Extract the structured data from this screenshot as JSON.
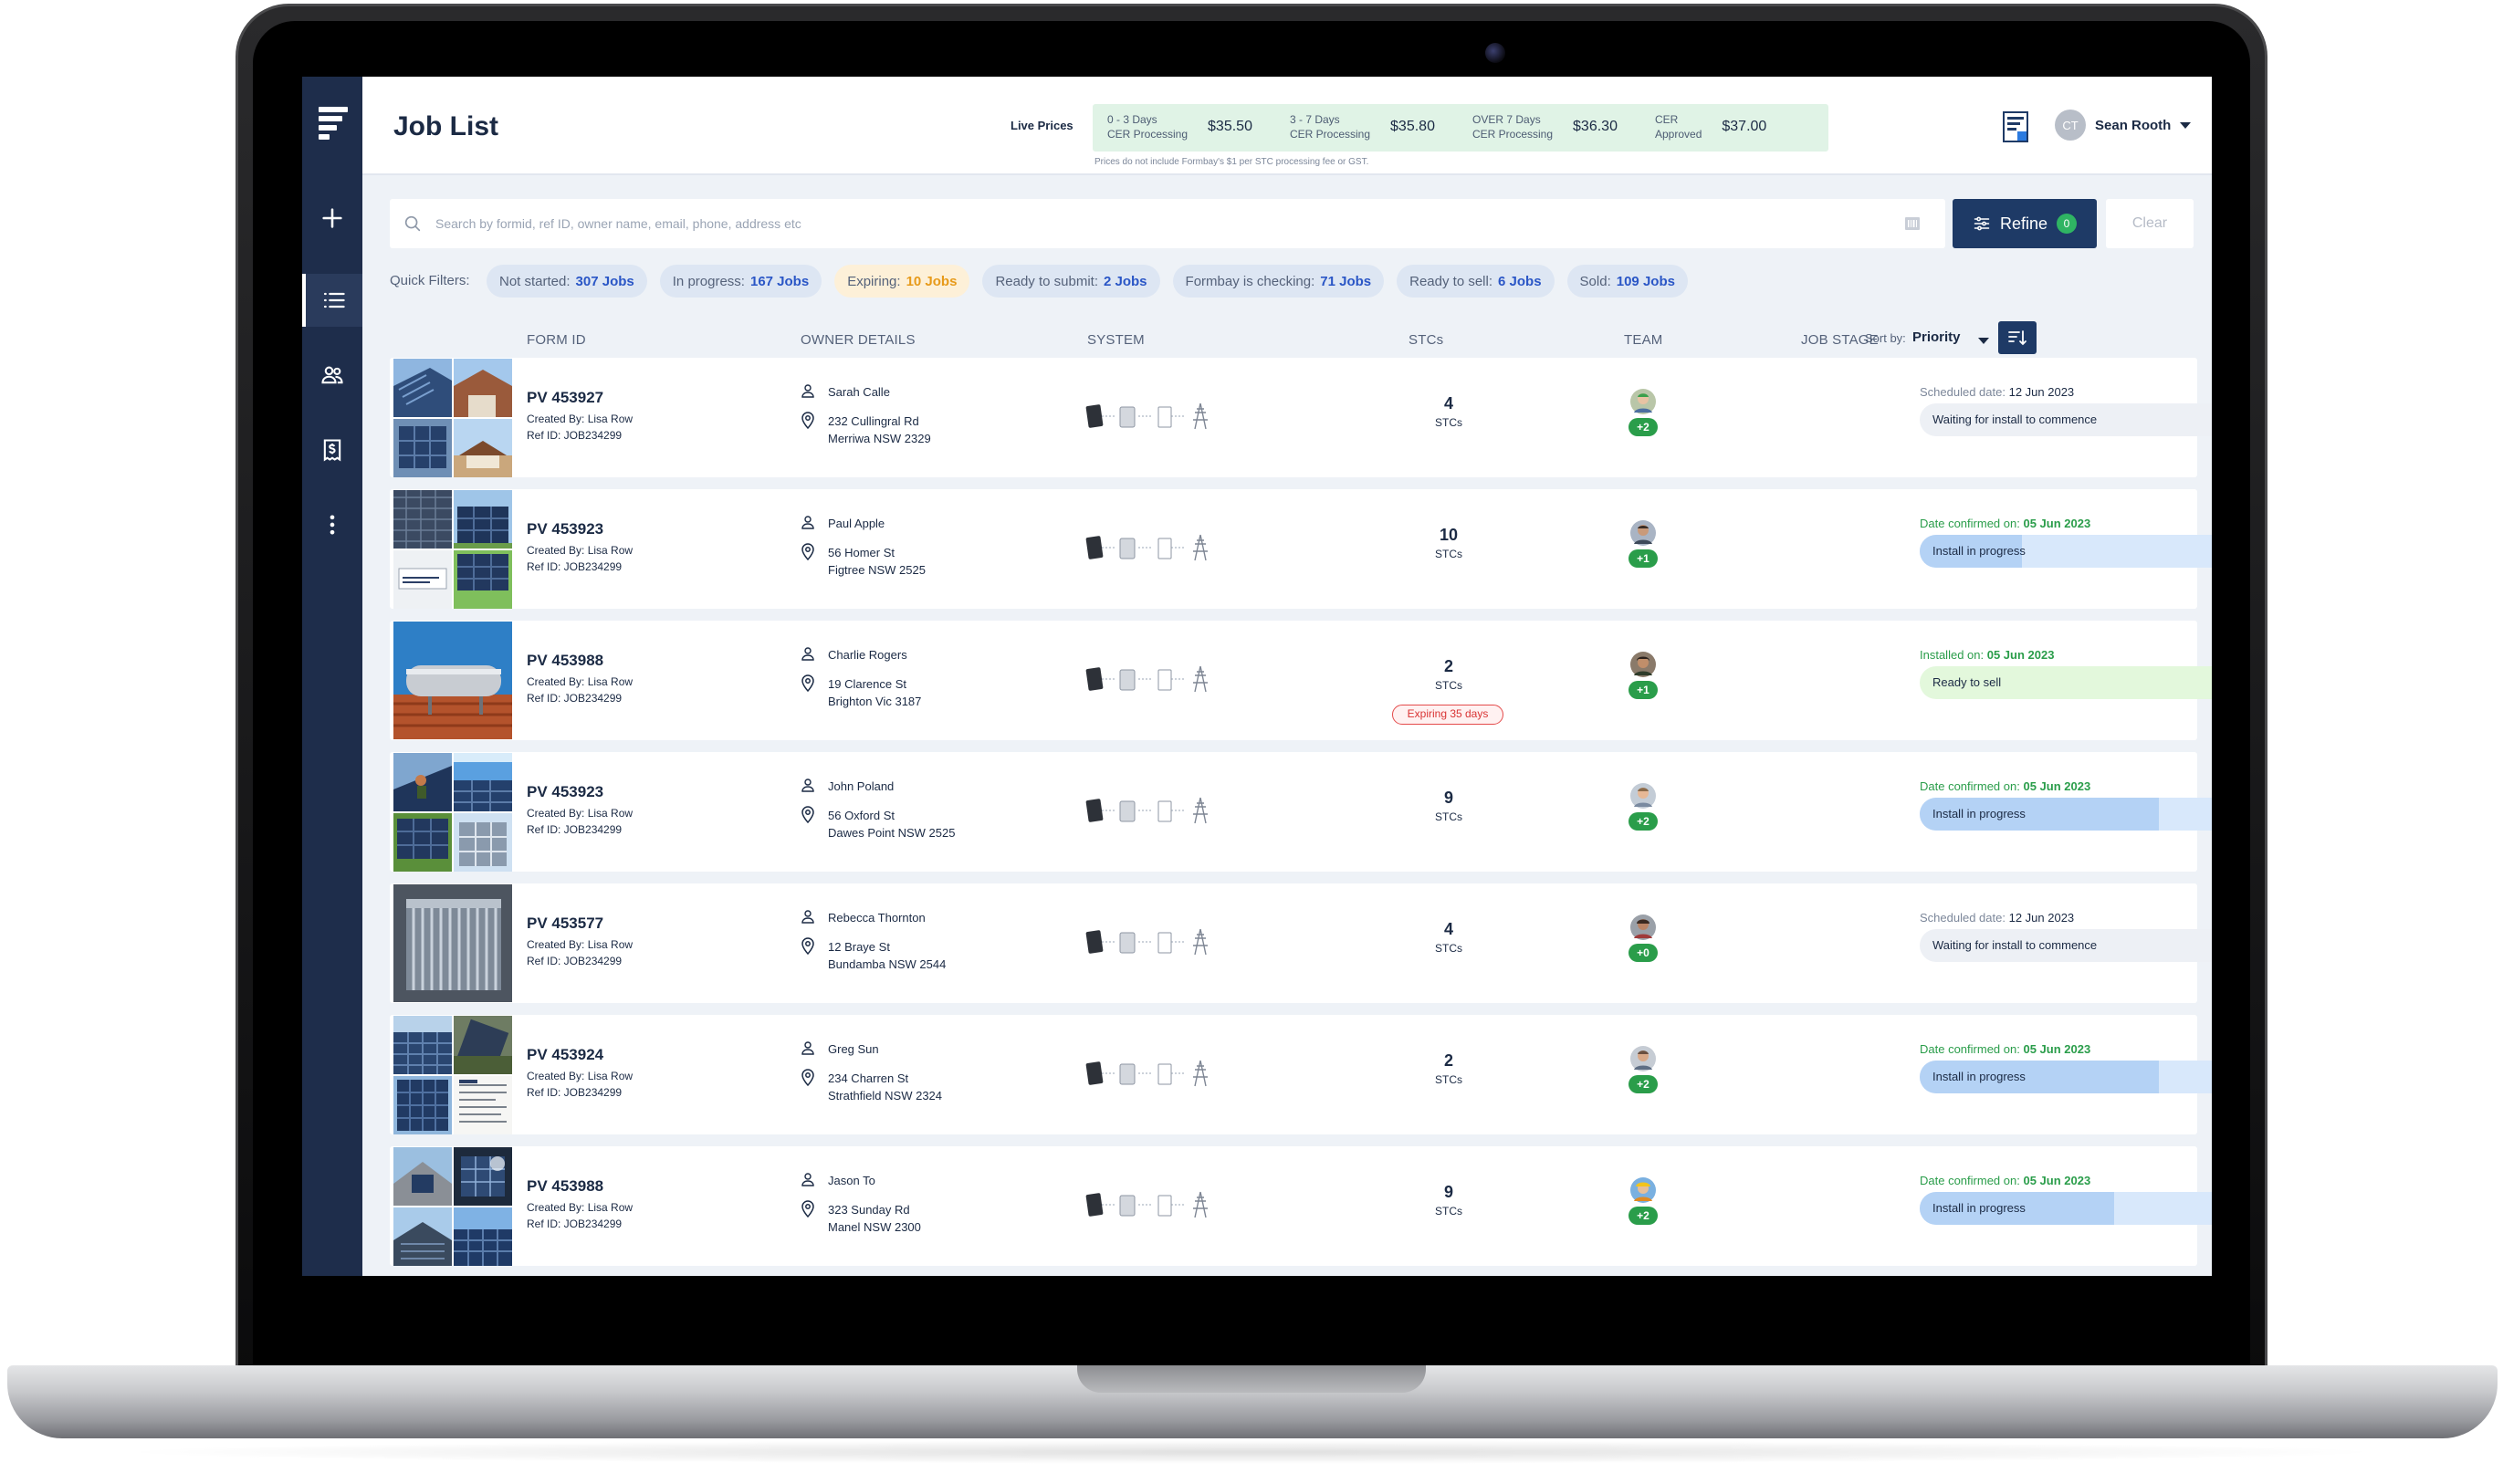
{
  "header": {
    "title": "Job List",
    "live_prices_label": "Live Prices",
    "prices": [
      {
        "line1": "0 - 3 Days",
        "line2": "CER Processing",
        "value": "$35.50"
      },
      {
        "line1": "3 - 7 Days",
        "line2": "CER Processing",
        "value": "$35.80"
      },
      {
        "line1": "OVER 7 Days",
        "line2": "CER Processing",
        "value": "$36.30"
      },
      {
        "line1": "CER",
        "line2": "Approved",
        "value": "$37.00"
      }
    ],
    "prices_note": "Prices do not include Formbay's $1 per STC processing fee or GST.",
    "user": {
      "initials": "CT",
      "name": "Sean Rooth"
    }
  },
  "search": {
    "placeholder": "Search by formid, ref ID, owner name, email, phone, address etc",
    "refine_label": "Refine",
    "refine_count": "0",
    "clear_label": "Clear"
  },
  "quick_filters": {
    "label": "Quick Filters:",
    "items": [
      {
        "label": "Not started:",
        "count": "307 Jobs"
      },
      {
        "label": "In progress:",
        "count": "167 Jobs"
      },
      {
        "label": "Expiring:",
        "count": "10 Jobs"
      },
      {
        "label": "Ready to submit:",
        "count": "2 Jobs"
      },
      {
        "label": "Formbay is checking:",
        "count": "71 Jobs"
      },
      {
        "label": "Ready to sell:",
        "count": "6 Jobs"
      },
      {
        "label": "Sold:",
        "count": "109 Jobs"
      }
    ]
  },
  "table": {
    "headers": {
      "form_id": "FORM ID",
      "owner": "OWNER DETAILS",
      "system": "SYSTEM",
      "stcs": "STCs",
      "team": "TEAM",
      "stage": "JOB STAGE"
    },
    "sort": {
      "label": "Sort by:",
      "value": "Priority"
    },
    "stc_unit": "STCs",
    "rows": [
      {
        "form_id": "PV 453927",
        "created_by": "Created By: Lisa Row",
        "ref_id": "Ref ID: JOB234299",
        "owner": "Sarah Calle",
        "address1": "232 Cullingral Rd",
        "address2": "Merriwa NSW 2329",
        "stcs": "4",
        "team": "+2",
        "date_label": "Scheduled date:",
        "date": "12 Jun 2023",
        "stage": "Waiting for install to commence"
      },
      {
        "form_id": "PV 453923",
        "created_by": "Created By: Lisa Row",
        "ref_id": "Ref ID: JOB234299",
        "owner": "Paul Apple",
        "address1": "56 Homer St",
        "address2": "Figtree NSW 2525",
        "stcs": "10",
        "team": "+1",
        "date_label": "Date confirmed on:",
        "date": "05 Jun 2023",
        "stage": "Install in progress"
      },
      {
        "form_id": "PV 453988",
        "created_by": "Created By: Lisa Row",
        "ref_id": "Ref ID: JOB234299",
        "owner": "Charlie Rogers",
        "address1": "19 Clarence St",
        "address2": "Brighton Vic 3187",
        "stcs": "2",
        "expiring": "Expiring 35 days",
        "team": "+1",
        "date_label": "Installed on:",
        "date": "05 Jun 2023",
        "stage": "Ready to sell"
      },
      {
        "form_id": "PV 453923",
        "created_by": "Created By: Lisa Row",
        "ref_id": "Ref ID: JOB234299",
        "owner": "John Poland",
        "address1": "56 Oxford St",
        "address2": "Dawes Point NSW 2525",
        "stcs": "9",
        "team": "+2",
        "date_label": "Date confirmed on:",
        "date": "05 Jun 2023",
        "stage": "Install in progress"
      },
      {
        "form_id": "PV 453577",
        "created_by": "Created By: Lisa Row",
        "ref_id": "Ref ID: JOB234299",
        "owner": "Rebecca Thornton",
        "address1": "12 Braye St",
        "address2": "Bundamba NSW 2544",
        "stcs": "4",
        "team": "+0",
        "date_label": "Scheduled date:",
        "date": "12 Jun 2023",
        "stage": "Waiting for install to commence"
      },
      {
        "form_id": "PV 453924",
        "created_by": "Created By: Lisa Row",
        "ref_id": "Ref ID: JOB234299",
        "owner": "Greg Sun",
        "address1": "234 Charren St",
        "address2": "Strathfield NSW 2324",
        "stcs": "2",
        "team": "+2",
        "date_label": "Date confirmed on:",
        "date": "05 Jun 2023",
        "stage": "Install in progress"
      },
      {
        "form_id": "PV 453988",
        "created_by": "Created By: Lisa Row",
        "ref_id": "Ref ID: JOB234299",
        "owner": "Jason To",
        "address1": "323 Sunday Rd",
        "address2": "Manel NSW 2300",
        "stcs": "9",
        "team": "+2",
        "date_label": "Date confirmed on:",
        "date": "05 Jun 2023",
        "stage": "Install in progress"
      }
    ]
  },
  "colors": {
    "sidebar": "#1e2d4b",
    "accent": "#1e3a66",
    "link": "#2a56c6",
    "success": "#2a9d4a",
    "warning": "#e79a1a",
    "danger": "#d93434"
  }
}
